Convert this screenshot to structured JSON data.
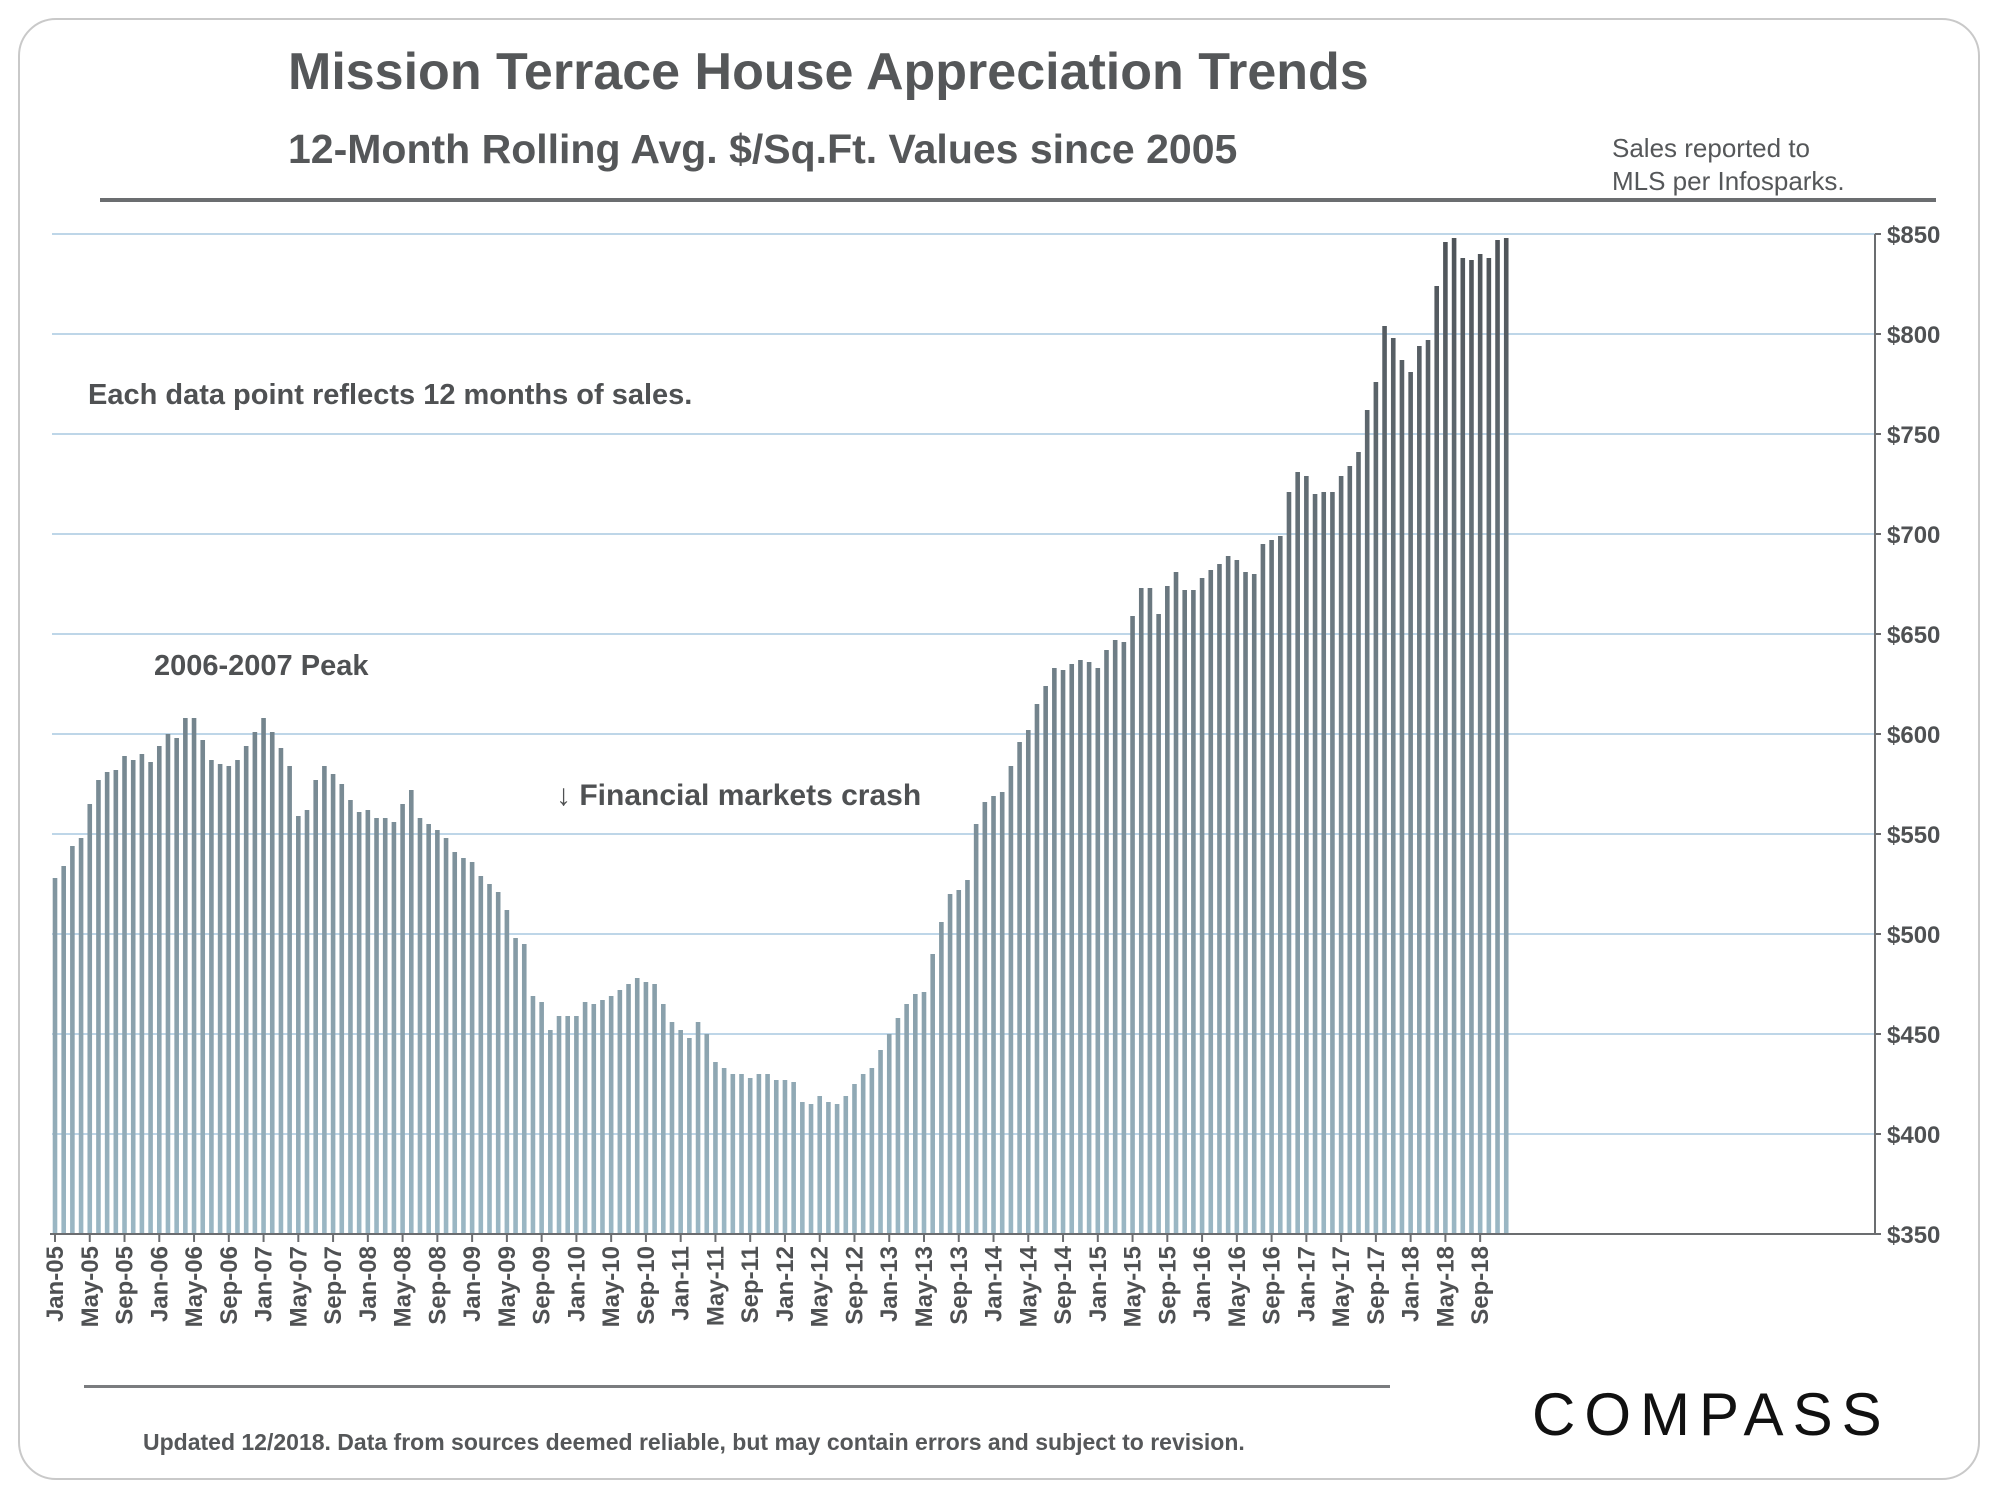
{
  "chart_data": {
    "type": "bar",
    "title": "Mission Terrace House Appreciation Trends",
    "subtitle": "12-Month Rolling Avg. $/Sq.Ft. Values since 2005",
    "source_note": "Sales reported to MLS per Infosparks.",
    "start": "Jan-05",
    "end": "Dec-18",
    "frequency": "monthly",
    "ylim": [
      350,
      850
    ],
    "yticks": [
      350,
      400,
      450,
      500,
      550,
      600,
      650,
      700,
      750,
      800,
      850
    ],
    "ytick_labels": [
      "$350",
      "$400",
      "$450",
      "$500",
      "$550",
      "$600",
      "$650",
      "$700",
      "$750",
      "$800",
      "$850"
    ],
    "xtick_labels": [
      "Jan-05",
      "May-05",
      "Sep-05",
      "Jan-06",
      "May-06",
      "Sep-06",
      "Jan-07",
      "May-07",
      "Sep-07",
      "Jan-08",
      "May-08",
      "Sep-08",
      "Jan-09",
      "May-09",
      "Sep-09",
      "Jan-10",
      "May-10",
      "Sep-10",
      "Jan-11",
      "May-11",
      "Sep-11",
      "Jan-12",
      "May-12",
      "Sep-12",
      "Jan-13",
      "May-13",
      "Sep-13",
      "Jan-14",
      "May-14",
      "Sep-14",
      "Jan-15",
      "May-15",
      "Sep-15",
      "Jan-16",
      "May-16",
      "Sep-16",
      "Jan-17",
      "May-17",
      "Sep-17",
      "Jan-18",
      "May-18",
      "Sep-18"
    ],
    "xtick_every_months": 4,
    "grid": true,
    "values": [
      528,
      534,
      544,
      548,
      565,
      577,
      581,
      582,
      589,
      587,
      590,
      586,
      594,
      600,
      598,
      608,
      608,
      597,
      587,
      585,
      584,
      587,
      594,
      601,
      608,
      601,
      593,
      584,
      559,
      562,
      577,
      584,
      580,
      575,
      567,
      561,
      562,
      558,
      558,
      556,
      565,
      572,
      558,
      555,
      552,
      548,
      541,
      538,
      536,
      529,
      525,
      521,
      512,
      498,
      495,
      469,
      466,
      452,
      459,
      459,
      459,
      466,
      465,
      467,
      469,
      472,
      475,
      478,
      476,
      475,
      465,
      456,
      452,
      448,
      456,
      450,
      436,
      433,
      430,
      430,
      428,
      430,
      430,
      427,
      427,
      426,
      416,
      415,
      419,
      416,
      415,
      419,
      425,
      430,
      433,
      442,
      450,
      458,
      465,
      470,
      471,
      490,
      506,
      520,
      522,
      527,
      555,
      566,
      569,
      571,
      584,
      596,
      602,
      615,
      624,
      633,
      632,
      635,
      637,
      636,
      633,
      642,
      647,
      646,
      659,
      673,
      673,
      660,
      674,
      681,
      672,
      672,
      678,
      682,
      685,
      689,
      687,
      681,
      680,
      695,
      697,
      699,
      721,
      731,
      729,
      720,
      721,
      721,
      729,
      734,
      741,
      762,
      776,
      804,
      798,
      787,
      781,
      794,
      797,
      824,
      846,
      848,
      838,
      837,
      840,
      838,
      847,
      848
    ]
  },
  "annotations": {
    "note": "Each data point reflects 12 months of sales.",
    "peak": "2006-2007 Peak",
    "crash": "↓ Financial markets crash"
  },
  "footer": {
    "disclaimer": "Updated 12/2018. Data from sources deemed reliable, but may contain errors and subject to revision.",
    "logo": "COMPASS"
  },
  "source_lines": [
    "Sales reported to",
    "MLS per Infosparks."
  ],
  "colors": {
    "bar_top": "#4e5358",
    "bar_bottom": "#9bb7c4",
    "grid": "#a9c8e0",
    "text": "#555759"
  }
}
